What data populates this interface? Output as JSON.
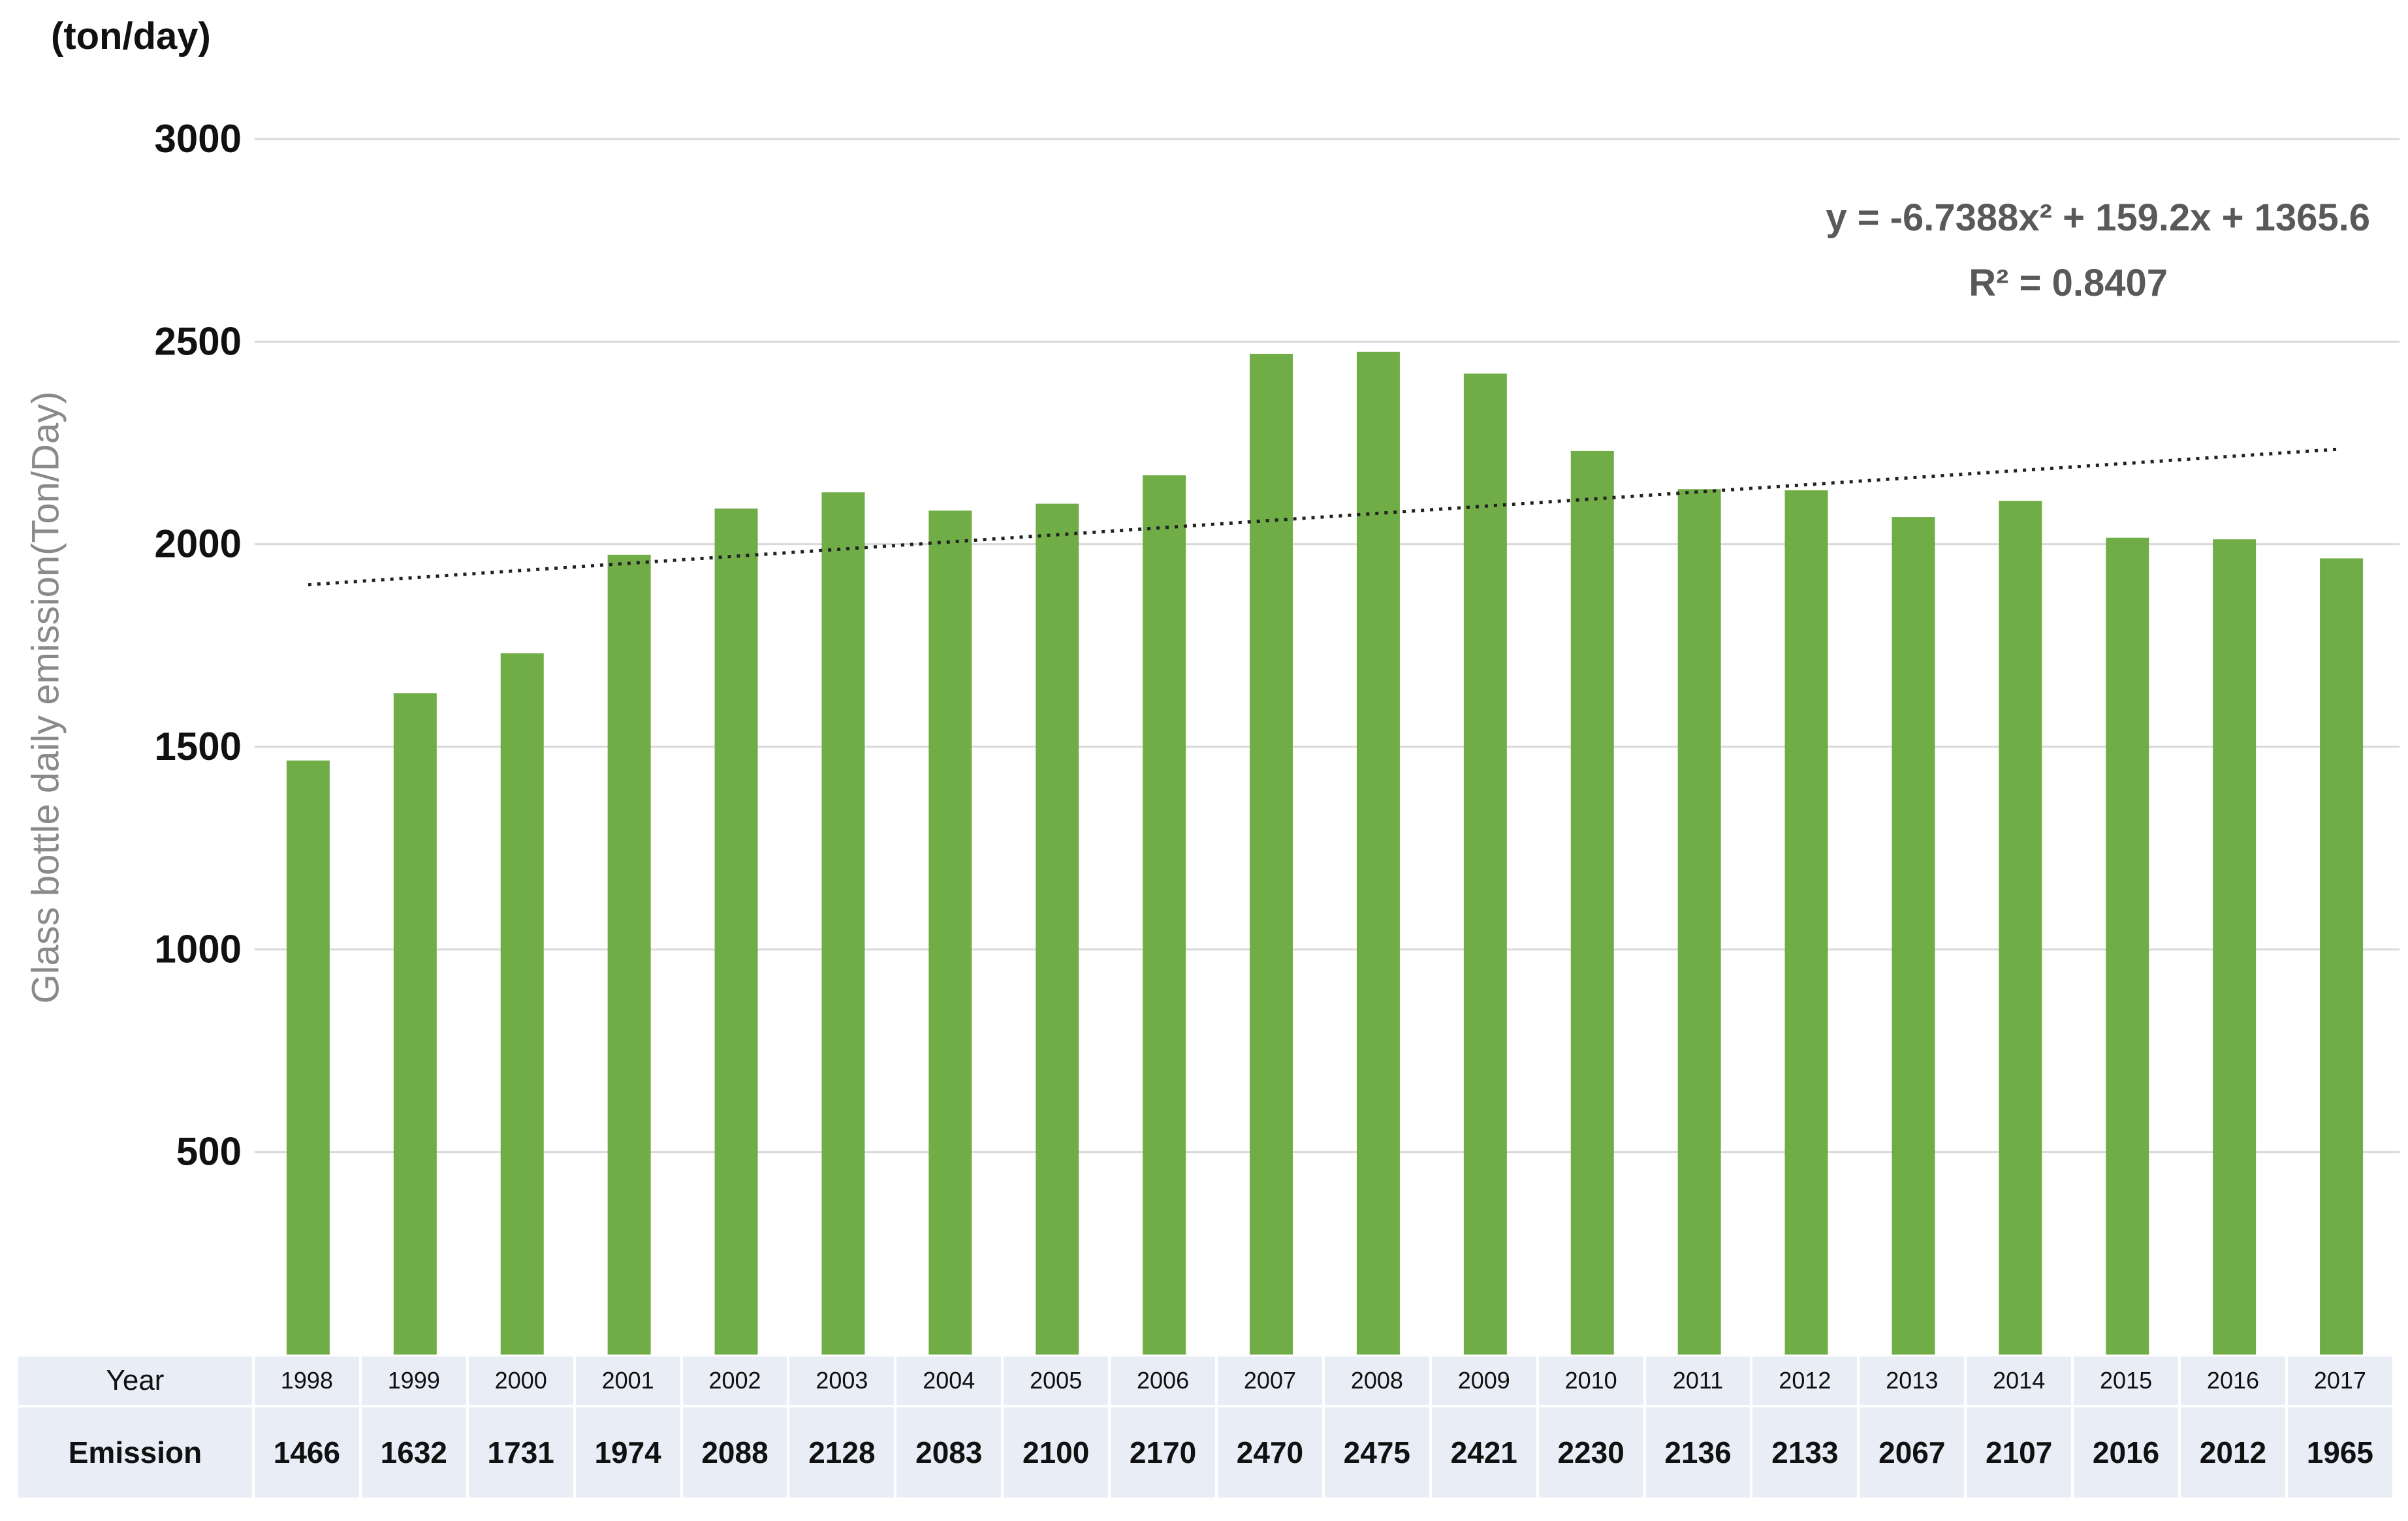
{
  "chart_data": {
    "type": "bar",
    "unit_label": "(ton/day)",
    "ylabel": "Glass bottle daily emission(Ton/Day)",
    "xlabel": "",
    "ylim": [
      0,
      3000
    ],
    "yticks": [
      500,
      1000,
      1500,
      2000,
      2500,
      3000
    ],
    "categories": [
      "1998",
      "1999",
      "2000",
      "2001",
      "2002",
      "2003",
      "2004",
      "2005",
      "2006",
      "2007",
      "2008",
      "2009",
      "2010",
      "2011",
      "2012",
      "2013",
      "2014",
      "2015",
      "2016",
      "2017"
    ],
    "series": [
      {
        "name": "Emission",
        "color": "#70ad47",
        "values": [
          1466,
          1632,
          1731,
          1974,
          2088,
          2128,
          2083,
          2100,
          2170,
          2470,
          2475,
          2421,
          2230,
          2136,
          2133,
          2067,
          2107,
          2016,
          2012,
          1965
        ]
      }
    ],
    "trendline": {
      "type": "dotted",
      "start_value": 1900,
      "end_value": 2235,
      "equation": "y = -6.7388x² + 159.2x + 1365.6",
      "r_squared": "R² = 0.8407"
    },
    "table": {
      "row_year_label": "Year",
      "row_value_label": "Emission"
    }
  }
}
